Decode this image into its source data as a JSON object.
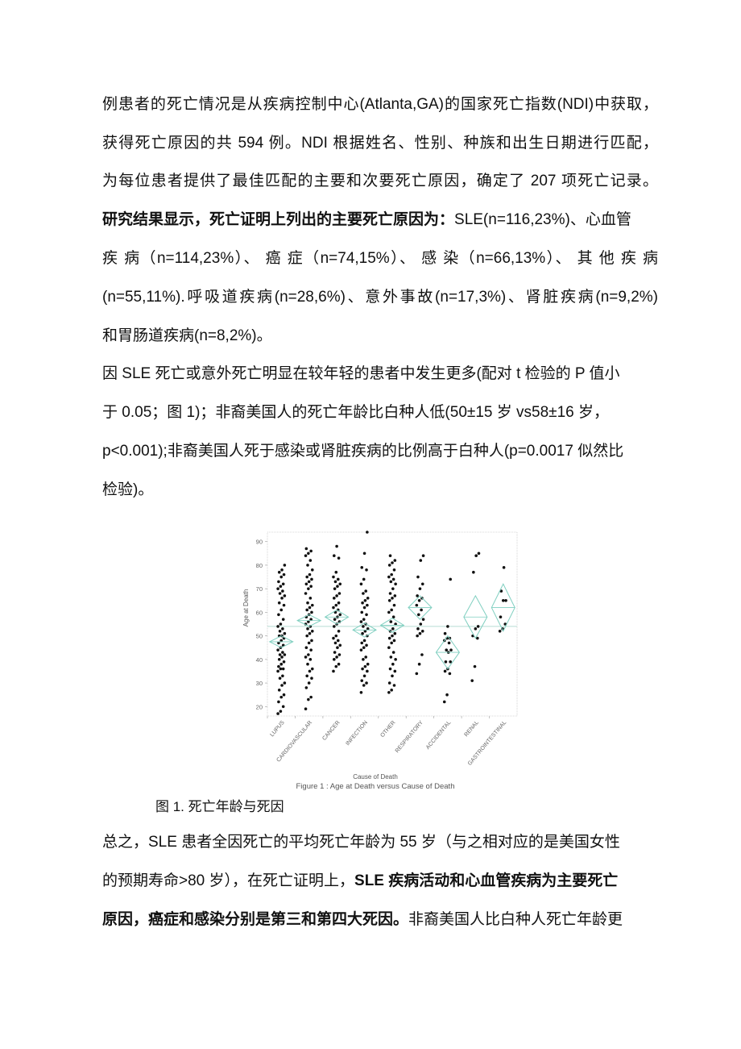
{
  "paragraph1": [
    "例患者的死亡情况是从疾病控制中心(Atlanta,GA)的国家死亡指数(NDI)中获取，",
    "获得死亡原因的共 594 例。NDI 根据姓名、性别、种族和出生日期进行匹配，",
    "为每位患者提供了最佳匹配的主要和次要死亡原因，确定了 207 项死亡记录。"
  ],
  "paragraph2": {
    "bold_lead": "研究结果显示，死亡证明上列出的主要死亡原因为：",
    "line1_rest": "SLE(n=116,23%)、心血管",
    "line2": "疾 病（n=114,23%）、 癌 症（n=74,15%）、 感 染（n=66,13%）、 其 他 疾 病",
    "line3": "(n=55,11%).呼吸道疾病(n=28,6%)、意外事故(n=17,3%)、肾脏疾病(n=9,2%)",
    "line4": "和胃肠道疾病(n=8,2%)。"
  },
  "paragraph3": [
    "因 SLE 死亡或意外死亡明显在较年轻的患者中发生更多(配对 t 检验的 P 值小",
    "于 0.05；图 1)；非裔美国人的死亡年龄比白种人低(50±15 岁 vs58±16 岁，",
    "p<0.001);非裔美国人死于感染或肾脏疾病的比例高于白种人(p=0.0017 似然比",
    "检验)。"
  ],
  "figure_caption": "图 1. 死亡年龄与死因",
  "paragraph4": {
    "line1": "总之，SLE 患者全因死亡的平均死亡年龄为 55 岁（与之相对应的是美国女性",
    "line2_normal": "的预期寿命>80 岁），在死亡证明上，",
    "line2_bold": "SLE 疾病活动和心血管疾病为主要死亡",
    "line3_bold": "原因，癌症和感染分别是第三和第四大死因。",
    "line3_normal": "非裔美国人比白种人死亡年龄更"
  },
  "chart_data": {
    "type": "scatter",
    "title": "Figure 1 : Age at Death versus Cause of Death",
    "xlabel": "Cause of Death",
    "ylabel": "Age at Death",
    "ylim": [
      16,
      94
    ],
    "yticks": [
      20,
      30,
      40,
      50,
      60,
      70,
      80,
      90
    ],
    "grand_mean": 54,
    "colors": {
      "points": "#111111",
      "diamond": "#7fcfc0",
      "mean_line": "#b8ddd4",
      "frame": "#cccccc",
      "text": "#666666"
    },
    "categories": [
      "LUPUS",
      "CARDIOVASCULAR",
      "CANCER",
      "INFECTION",
      "OTHER",
      "RESPIRATORY",
      "ACCIDENTAL",
      "RENAL",
      "GASTROINTESTINAL"
    ],
    "means": [
      47.5,
      56.5,
      58,
      52.5,
      54.5,
      62,
      43,
      58,
      62
    ],
    "ci": [
      [
        45,
        50
      ],
      [
        54,
        59
      ],
      [
        55,
        61
      ],
      [
        49.5,
        55.5
      ],
      [
        51.5,
        57.5
      ],
      [
        57,
        67
      ],
      [
        36,
        50
      ],
      [
        49,
        67
      ],
      [
        52,
        72
      ]
    ],
    "points": [
      [
        17,
        18,
        20,
        22,
        24,
        25,
        27,
        29,
        30,
        32,
        33,
        35,
        36,
        36,
        37,
        38,
        39,
        40,
        41,
        42,
        42,
        43,
        44,
        45,
        46,
        47,
        48,
        49,
        50,
        50,
        51,
        52,
        53,
        54,
        55,
        57,
        59,
        61,
        63,
        64,
        66,
        67,
        68,
        69,
        70,
        71,
        72,
        73,
        75,
        76,
        77,
        78,
        80
      ],
      [
        19,
        23,
        24,
        28,
        30,
        32,
        33,
        35,
        36,
        38,
        40,
        41,
        42,
        44,
        45,
        47,
        48,
        50,
        51,
        52,
        53,
        54,
        55,
        56,
        57,
        58,
        59,
        60,
        61,
        62,
        63,
        64,
        66,
        68,
        70,
        71,
        72,
        73,
        74,
        75,
        76,
        78,
        80,
        82,
        84,
        85,
        86,
        87
      ],
      [
        35,
        37,
        38,
        40,
        41,
        42,
        43,
        45,
        46,
        47,
        48,
        49,
        50,
        52,
        54,
        55,
        56,
        57,
        58,
        59,
        60,
        61,
        62,
        63,
        64,
        66,
        67,
        68,
        70,
        71,
        72,
        73,
        74,
        75,
        77,
        83,
        84,
        88
      ],
      [
        26,
        29,
        30,
        31,
        33,
        35,
        36,
        37,
        38,
        40,
        41,
        44,
        45,
        46,
        47,
        48,
        50,
        51,
        52,
        53,
        54,
        55,
        56,
        57,
        59,
        60,
        62,
        63,
        64,
        65,
        66,
        68,
        69,
        72,
        74,
        78,
        79,
        85,
        94
      ],
      [
        26,
        27,
        29,
        30,
        33,
        35,
        36,
        38,
        40,
        41,
        43,
        45,
        47,
        48,
        49,
        50,
        51,
        52,
        53,
        55,
        56,
        58,
        60,
        61,
        63,
        65,
        66,
        67,
        68,
        70,
        72,
        73,
        74,
        75,
        76,
        78,
        80,
        81,
        82,
        84
      ],
      [
        34,
        38,
        42,
        50,
        51,
        52,
        53,
        55,
        57,
        59,
        61,
        63,
        65,
        66,
        67,
        70,
        72,
        75,
        82,
        84
      ],
      [
        22,
        25,
        34,
        35,
        36,
        39,
        39,
        43,
        44,
        44,
        47,
        48,
        49,
        49,
        51,
        54,
        74
      ],
      [
        31,
        37,
        49,
        50,
        53,
        54,
        77,
        84,
        85
      ],
      [
        52,
        53,
        55,
        58,
        65,
        65,
        69,
        79
      ]
    ]
  }
}
